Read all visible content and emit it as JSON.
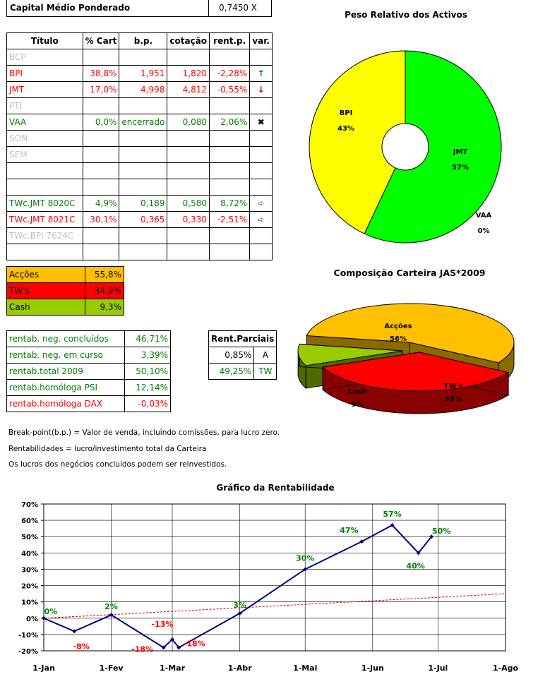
{
  "capital": {
    "label": "Capital Médio Ponderado",
    "value": "0,7450 X"
  },
  "portfolio_table": {
    "headers": [
      "Título",
      "% Cart",
      "b.p.",
      "cotação",
      "rent.p.",
      "var."
    ],
    "rows": [
      {
        "titulo": "BCP",
        "cart": "",
        "bp": "",
        "cot": "",
        "rent": "",
        "var": "",
        "color": "grey"
      },
      {
        "titulo": "BPI",
        "cart": "38,8%",
        "bp": "1,951",
        "cot": "1,820",
        "rent": "-2,28%",
        "var": "↑",
        "color": "red",
        "var_icon": "arrow-up-icon"
      },
      {
        "titulo": "JMT",
        "cart": "17,0%",
        "bp": "4,998",
        "cot": "4,812",
        "rent": "-0,55%",
        "var": "↓",
        "color": "red",
        "var_icon": "arrow-down-icon"
      },
      {
        "titulo": "PTI",
        "cart": "",
        "bp": "",
        "cot": "",
        "rent": "",
        "var": "",
        "color": "grey"
      },
      {
        "titulo": "VAA",
        "cart": "0,0%",
        "bp": "encerrado",
        "cot": "0,080",
        "rent": "2,06%",
        "var": "✖",
        "color": "green",
        "var_icon": "cross-icon"
      },
      {
        "titulo": "SON",
        "cart": "",
        "bp": "",
        "cot": "",
        "rent": "",
        "var": "",
        "color": "grey"
      },
      {
        "titulo": "SEM",
        "cart": "",
        "bp": "",
        "cot": "",
        "rent": "",
        "var": "",
        "color": "grey"
      },
      {
        "titulo": "",
        "cart": "",
        "bp": "",
        "cot": "",
        "rent": "",
        "var": "",
        "color": "grey"
      },
      {
        "titulo": "",
        "cart": "",
        "bp": "",
        "cot": "",
        "rent": "",
        "var": "",
        "color": "grey"
      },
      {
        "titulo": "TWc.JMT 8020C",
        "cart": "4,9%",
        "bp": "0,189",
        "cot": "0,580",
        "rent": "8,72%",
        "var": "➪",
        "color": "green",
        "var_icon": "arrow-right-icon"
      },
      {
        "titulo": "TWc.JMT 8021C",
        "cart": "30,1%",
        "bp": "0,365",
        "cot": "0,330",
        "rent": "-2,51%",
        "var": "➪",
        "color": "red",
        "var_icon": "arrow-right-icon"
      },
      {
        "titulo": "TWc.BPI 7624C",
        "cart": "",
        "bp": "",
        "cot": "",
        "rent": "",
        "var": "",
        "color": "grey"
      },
      {
        "titulo": "",
        "cart": "",
        "bp": "",
        "cot": "",
        "rent": "",
        "var": "",
        "color": "grey"
      }
    ]
  },
  "composition": [
    {
      "label": "Acções",
      "value": "55,8%",
      "color": "#ffc000"
    },
    {
      "label": "TW's",
      "value": "34,9%",
      "color": "#ff0000"
    },
    {
      "label": "Cash",
      "value": "9,3%",
      "color": "#99cc00"
    }
  ],
  "rentab": [
    {
      "label": "rentab. neg. concluídos",
      "value": "46,71%",
      "color": "green"
    },
    {
      "label": "rentab. neg. em curso",
      "value": "3,39%",
      "color": "green"
    },
    {
      "label": "rentab.total 2009",
      "value": "50,10%",
      "color": "green"
    },
    {
      "label": "rentab.homóloga PSI",
      "value": "12,14%",
      "color": "green"
    },
    {
      "label": "rentab.homóloga DAX",
      "value": "-0,03%",
      "color": "red"
    }
  ],
  "rent_parciais": {
    "header": "Rent.Parciais",
    "rows": [
      {
        "value": "0,85%",
        "tag": "A"
      },
      {
        "value": "49,25%",
        "tag": "TW"
      }
    ]
  },
  "notes": [
    "Break-point(b.p.) = Valor de venda, incluindo comissões, para lucro zero.",
    "Rentabilidades = lucro/investimento total da Carteira",
    "Os lucros dos negócios concluídos podem ser reinvestidos."
  ],
  "chart_data": [
    {
      "type": "pie",
      "title": "Peso Relativo dos Activos",
      "style": "doughnut",
      "slices": [
        {
          "label": "BPI",
          "value": 43,
          "pct_label": "43%",
          "color": "#ffff00"
        },
        {
          "label": "JMT",
          "value": 57,
          "pct_label": "57%",
          "color": "#00ff00"
        },
        {
          "label": "VAA",
          "value": 0,
          "pct_label": "0%",
          "color": "#0000ff"
        }
      ]
    },
    {
      "type": "pie",
      "title": "Composição Carteira JAS*2009",
      "style": "3d-exploded",
      "slices": [
        {
          "label": "Acções",
          "value": 56,
          "pct_label": "56%",
          "color": "#ffc000"
        },
        {
          "label": "TW's",
          "value": 35,
          "pct_label": "35%",
          "color": "#ff0000"
        },
        {
          "label": "Cash",
          "value": 9,
          "pct_label": "9%",
          "color": "#99cc00"
        }
      ]
    },
    {
      "type": "line",
      "title": "Gráfico da Rentabilidade",
      "x_ticks": [
        "1-Jan",
        "1-Fev",
        "1-Mar",
        "1-Abr",
        "1-Mai",
        "1-Jun",
        "1-Jul",
        "1-Ago"
      ],
      "ylim": [
        -20,
        70
      ],
      "y_ticks": [
        "-20%",
        "-10%",
        "0%",
        "10%",
        "20%",
        "30%",
        "40%",
        "50%",
        "60%",
        "70%"
      ],
      "grid": true,
      "series": [
        {
          "color": "#000080",
          "points": [
            {
              "x": "2009-01-01",
              "y": 0,
              "label": "0%"
            },
            {
              "x": "2009-01-15",
              "y": -8,
              "label": "-8%"
            },
            {
              "x": "2009-02-01",
              "y": 2,
              "label": "2%"
            },
            {
              "x": "2009-02-25",
              "y": -18,
              "label": "-18%"
            },
            {
              "x": "2009-03-01",
              "y": -13,
              "label": "-13%"
            },
            {
              "x": "2009-03-04",
              "y": -18,
              "label": "-18%"
            },
            {
              "x": "2009-04-01",
              "y": 3,
              "label": "3%"
            },
            {
              "x": "2009-05-01",
              "y": 30,
              "label": "30%"
            },
            {
              "x": "2009-05-27",
              "y": 47,
              "label": "47%"
            },
            {
              "x": "2009-06-10",
              "y": 57,
              "label": "57%"
            },
            {
              "x": "2009-06-22",
              "y": 40,
              "label": "40%"
            },
            {
              "x": "2009-06-28",
              "y": 50,
              "label": "50%"
            }
          ]
        },
        {
          "color": "#cc0000",
          "style": "dashed",
          "points": [
            {
              "x": "2009-01-01",
              "y": 0
            },
            {
              "x": "2009-08-01",
              "y": 15
            }
          ]
        }
      ]
    }
  ]
}
